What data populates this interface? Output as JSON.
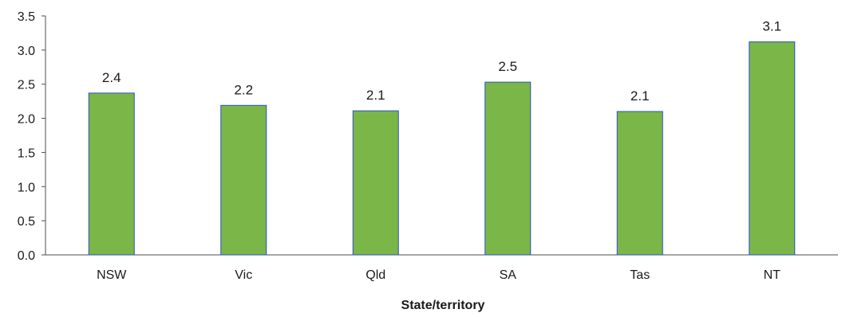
{
  "chart_data": {
    "type": "bar",
    "title": "",
    "xlabel": "State/territory",
    "ylabel": "",
    "categories": [
      "NSW",
      "Vic",
      "Qld",
      "SA",
      "Tas",
      "NT"
    ],
    "values": [
      2.37,
      2.19,
      2.11,
      2.53,
      2.1,
      3.12
    ],
    "data_labels": [
      "2.4",
      "2.2",
      "2.1",
      "2.5",
      "2.1",
      "3.1"
    ],
    "ylim": [
      0,
      3.5
    ],
    "yticks": [
      "0.0",
      "0.5",
      "1.0",
      "1.5",
      "2.0",
      "2.5",
      "3.0",
      "3.5"
    ],
    "grid": false,
    "legend": "none",
    "colors": {
      "bar_fill": "#7ab648",
      "bar_stroke": "#2a52be",
      "axis": "#4d4d4d",
      "text": "#1a1a1a"
    }
  }
}
